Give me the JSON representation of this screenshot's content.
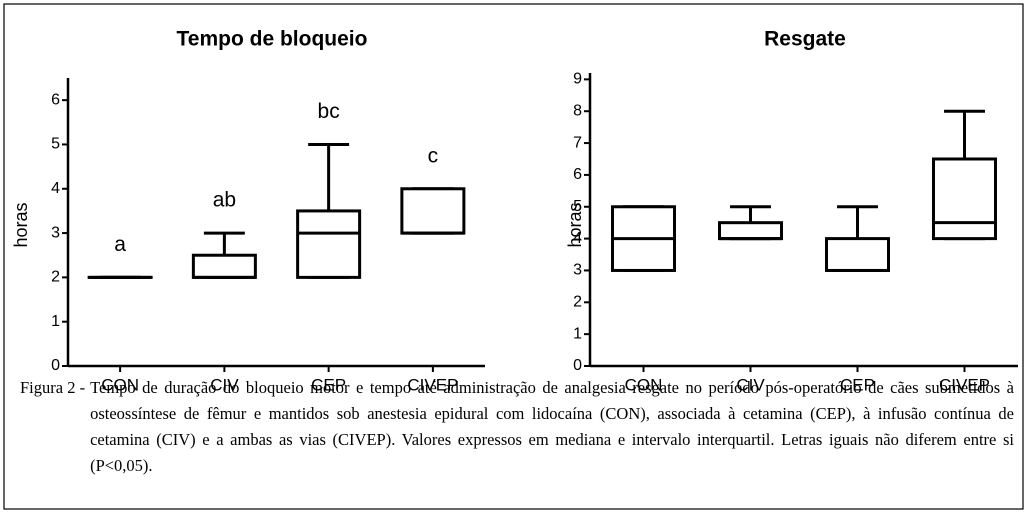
{
  "chart_data": [
    {
      "type": "box",
      "title": "Tempo de bloqueio",
      "y_label": "horas",
      "categories": [
        "CON",
        "CIV",
        "CEP",
        "CIVEP"
      ],
      "min": [
        2,
        2,
        2,
        3
      ],
      "q1": [
        2,
        2,
        2,
        3
      ],
      "median": [
        2,
        2,
        3,
        3
      ],
      "q3": [
        2,
        2.5,
        3.5,
        4
      ],
      "max": [
        2,
        3,
        5,
        4
      ],
      "annotations": [
        "a",
        "ab",
        "bc",
        "c"
      ],
      "ylim": [
        0,
        6.5
      ],
      "yticks": [
        0,
        1,
        2,
        3,
        4,
        5,
        6
      ],
      "color": "#000000"
    },
    {
      "type": "box",
      "title": "Resgate",
      "y_label": "horas",
      "categories": [
        "CON",
        "CIV",
        "CEP",
        "CIVEP"
      ],
      "min": [
        3,
        4,
        3,
        4
      ],
      "q1": [
        3,
        4,
        3,
        4
      ],
      "median": [
        4,
        4,
        3,
        4.5
      ],
      "q3": [
        5,
        4.5,
        4,
        6.5
      ],
      "max": [
        5,
        5,
        5,
        8
      ],
      "ylim": [
        0,
        9.2
      ],
      "yticks": [
        0,
        1,
        2,
        3,
        4,
        5,
        6,
        7,
        8,
        9
      ],
      "color": "#000000"
    }
  ],
  "caption": {
    "label": "Figura 2 -",
    "text": "Tempo de duração do bloqueio motor e tempo até administração de analgesia resgate no período pós-operatório de cães submetidos à osteossíntese de fêmur e mantidos sob anestesia epidural com lidocaína (CON), associada à cetamina (CEP), à infusão contínua de cetamina (CIV) e a ambas as vias (CIVEP). Valores expressos em mediana e intervalo interquartil. Letras iguais não diferem entre si (P<0,05)."
  }
}
